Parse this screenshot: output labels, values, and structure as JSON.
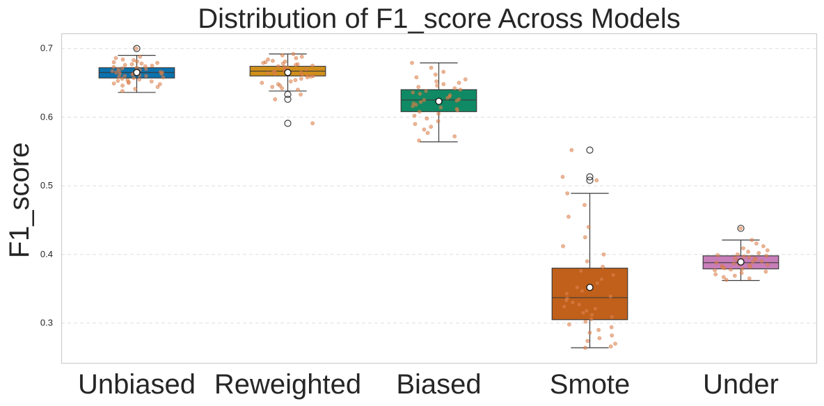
{
  "chart_data": {
    "type": "box",
    "title": "Distribution of F1_score Across Models",
    "xlabel": "",
    "ylabel": "F1_score",
    "ylim": [
      0.242,
      0.722
    ],
    "yticks": [
      "0.3",
      "0.4",
      "0.5",
      "0.6",
      "0.7"
    ],
    "ytick_values": [
      0.3,
      0.4,
      0.5,
      0.6,
      0.7
    ],
    "grid": "y-dashed",
    "categories": [
      "Unbiased",
      "Reweighted",
      "Biased",
      "Smote",
      "Under"
    ],
    "colors": {
      "box": [
        "#0b72ae",
        "#d08f1a",
        "#0f8a64",
        "#c1601a",
        "#c77eb9"
      ],
      "strip": "#dd8452",
      "grid": "#dddddd",
      "frame": "#cccccc",
      "median": "#3a3a3a"
    },
    "boxes": [
      {
        "name": "Unbiased",
        "q1": 0.657,
        "median": 0.665,
        "q3": 0.672,
        "whisker_low": 0.636,
        "whisker_high": 0.69,
        "mean": 0.665,
        "outliers": [
          0.7
        ]
      },
      {
        "name": "Reweighted",
        "q1": 0.66,
        "median": 0.667,
        "q3": 0.674,
        "whisker_low": 0.638,
        "whisker_high": 0.692,
        "mean": 0.665,
        "outliers": [
          0.633,
          0.626,
          0.591
        ]
      },
      {
        "name": "Biased",
        "q1": 0.608,
        "median": 0.625,
        "q3": 0.64,
        "whisker_low": 0.564,
        "whisker_high": 0.679,
        "mean": 0.623,
        "outliers": []
      },
      {
        "name": "Smote",
        "q1": 0.305,
        "median": 0.337,
        "q3": 0.38,
        "whisker_low": 0.264,
        "whisker_high": 0.489,
        "mean": 0.352,
        "outliers": [
          0.552,
          0.513,
          0.508
        ]
      },
      {
        "name": "Under",
        "q1": 0.379,
        "median": 0.388,
        "q3": 0.398,
        "whisker_low": 0.362,
        "whisker_high": 0.421,
        "mean": 0.389,
        "outliers": [
          0.438
        ]
      }
    ],
    "strip_points": [
      [
        0.7,
        0.688,
        0.686,
        0.684,
        0.683,
        0.681,
        0.68,
        0.679,
        0.678,
        0.677,
        0.676,
        0.675,
        0.674,
        0.673,
        0.672,
        0.671,
        0.67,
        0.67,
        0.669,
        0.668,
        0.667,
        0.667,
        0.666,
        0.665,
        0.665,
        0.664,
        0.663,
        0.663,
        0.662,
        0.661,
        0.66,
        0.66,
        0.659,
        0.658,
        0.657,
        0.656,
        0.655,
        0.654,
        0.653,
        0.652,
        0.651,
        0.65,
        0.649,
        0.648,
        0.646,
        0.644,
        0.641,
        0.638
      ],
      [
        0.692,
        0.69,
        0.688,
        0.686,
        0.684,
        0.682,
        0.681,
        0.68,
        0.679,
        0.678,
        0.677,
        0.676,
        0.675,
        0.674,
        0.673,
        0.672,
        0.671,
        0.67,
        0.669,
        0.668,
        0.667,
        0.666,
        0.665,
        0.664,
        0.663,
        0.662,
        0.661,
        0.66,
        0.659,
        0.658,
        0.656,
        0.654,
        0.652,
        0.65,
        0.648,
        0.646,
        0.644,
        0.642,
        0.64,
        0.633,
        0.626,
        0.591
      ],
      [
        0.679,
        0.672,
        0.666,
        0.662,
        0.658,
        0.655,
        0.652,
        0.65,
        0.648,
        0.646,
        0.644,
        0.642,
        0.64,
        0.638,
        0.636,
        0.634,
        0.632,
        0.63,
        0.628,
        0.626,
        0.625,
        0.624,
        0.622,
        0.62,
        0.618,
        0.616,
        0.614,
        0.612,
        0.61,
        0.608,
        0.605,
        0.602,
        0.598,
        0.594,
        0.59,
        0.586,
        0.582,
        0.577,
        0.572,
        0.566
      ],
      [
        0.552,
        0.513,
        0.508,
        0.489,
        0.472,
        0.455,
        0.44,
        0.425,
        0.412,
        0.4,
        0.39,
        0.382,
        0.376,
        0.37,
        0.364,
        0.358,
        0.352,
        0.347,
        0.343,
        0.339,
        0.336,
        0.333,
        0.33,
        0.327,
        0.324,
        0.321,
        0.318,
        0.315,
        0.312,
        0.309,
        0.306,
        0.302,
        0.298,
        0.294,
        0.29,
        0.286,
        0.282,
        0.278,
        0.274,
        0.27,
        0.266,
        0.264
      ],
      [
        0.438,
        0.421,
        0.416,
        0.412,
        0.409,
        0.406,
        0.404,
        0.402,
        0.4,
        0.399,
        0.398,
        0.397,
        0.396,
        0.395,
        0.394,
        0.393,
        0.392,
        0.391,
        0.39,
        0.389,
        0.388,
        0.387,
        0.386,
        0.385,
        0.384,
        0.383,
        0.382,
        0.381,
        0.38,
        0.379,
        0.378,
        0.377,
        0.375,
        0.373,
        0.371,
        0.369,
        0.367,
        0.365,
        0.363
      ]
    ]
  }
}
